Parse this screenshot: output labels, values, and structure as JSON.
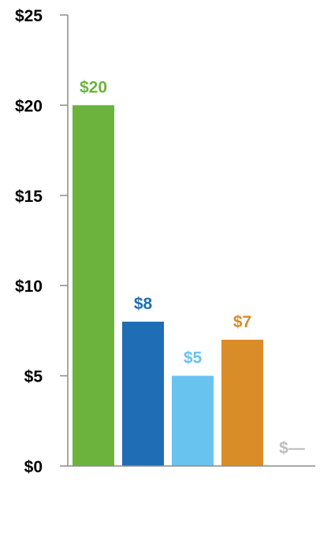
{
  "chart_data": {
    "type": "bar",
    "categories": [
      "",
      "",
      "",
      "",
      ""
    ],
    "values": [
      20,
      8,
      5,
      7,
      0
    ],
    "data_labels": [
      "$20",
      "$8",
      "$5",
      "$7",
      "$—"
    ],
    "colors": [
      "#6cb33e",
      "#1f6db5",
      "#69c3ef",
      "#d98c27",
      "#bdbdbd"
    ],
    "yticks": [
      0,
      5,
      10,
      15,
      20,
      25
    ],
    "ytick_labels": [
      "$0",
      "$5",
      "$10",
      "$15",
      "$20",
      "$25"
    ],
    "ylim": [
      0,
      25
    ],
    "title": "",
    "xlabel": "",
    "ylabel": "",
    "grid": false,
    "axis_color": "#8c8c8c"
  }
}
